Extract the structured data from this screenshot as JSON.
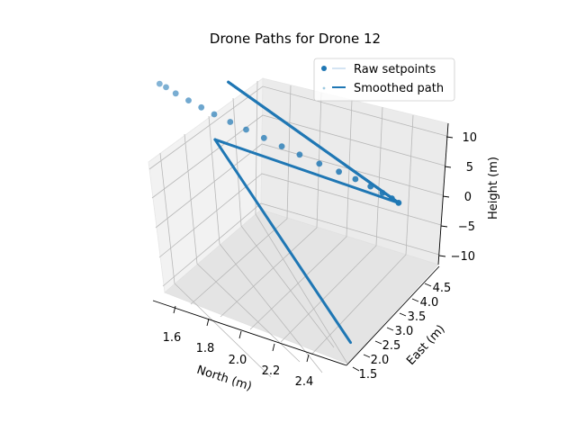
{
  "chart_data": {
    "type": "scatter",
    "projection": "3d",
    "title": "Drone Paths for Drone 12",
    "xlabel": "North (m)",
    "ylabel": "East (m)",
    "zlabel": "Height (m)",
    "xticks": [
      "1.6",
      "1.8",
      "2.0",
      "2.2",
      "2.4"
    ],
    "yticks": [
      "1.5",
      "2.0",
      "2.5",
      "3.0",
      "3.5",
      "4.0",
      "4.5"
    ],
    "zticks": [
      "10",
      "5",
      "0",
      "−5",
      "−10"
    ],
    "grid": true,
    "legend": {
      "location": "top-right",
      "entries": [
        "Raw setpoints",
        "Smoothed path"
      ]
    },
    "series": [
      {
        "name": "Raw setpoints",
        "style": "markers",
        "color": "#1f77b4",
        "points": [
          {
            "x": 1.55,
            "y": 1.0,
            "z": 9.9
          },
          {
            "x": 1.57,
            "y": 1.1,
            "z": 9.5
          },
          {
            "x": 1.6,
            "y": 1.25,
            "z": 8.8
          },
          {
            "x": 1.64,
            "y": 1.45,
            "z": 8.0
          },
          {
            "x": 1.68,
            "y": 1.65,
            "z": 7.2
          },
          {
            "x": 1.72,
            "y": 1.85,
            "z": 6.4
          },
          {
            "x": 1.77,
            "y": 2.1,
            "z": 5.5
          },
          {
            "x": 1.82,
            "y": 2.35,
            "z": 4.6
          },
          {
            "x": 1.88,
            "y": 2.6,
            "z": 3.7
          },
          {
            "x": 1.94,
            "y": 2.85,
            "z": 2.8
          },
          {
            "x": 2.0,
            "y": 3.1,
            "z": 1.9
          },
          {
            "x": 2.07,
            "y": 3.35,
            "z": 1.0
          },
          {
            "x": 2.14,
            "y": 3.6,
            "z": 0.2
          },
          {
            "x": 2.2,
            "y": 3.8,
            "z": -0.5
          },
          {
            "x": 2.26,
            "y": 3.95,
            "z": -1.1
          },
          {
            "x": 2.31,
            "y": 4.05,
            "z": -1.6
          },
          {
            "x": 2.35,
            "y": 4.12,
            "z": -2.0
          },
          {
            "x": 2.38,
            "y": 4.16,
            "z": -2.3
          }
        ]
      },
      {
        "name": "Smoothed path",
        "style": "line",
        "color": "#1f77b4",
        "points": [
          {
            "x": 1.6,
            "y": 3.3,
            "z": 5.8
          },
          {
            "x": 2.38,
            "y": 4.16,
            "z": -2.3
          },
          {
            "x": 1.6,
            "y": 3.3,
            "z": 5.8
          },
          {
            "x": 2.38,
            "y": 4.16,
            "z": -2.3
          },
          {
            "x": 1.55,
            "y": 3.0,
            "z": 0.5
          },
          {
            "x": 2.45,
            "y": 1.5,
            "z": -10.0
          }
        ]
      }
    ]
  }
}
